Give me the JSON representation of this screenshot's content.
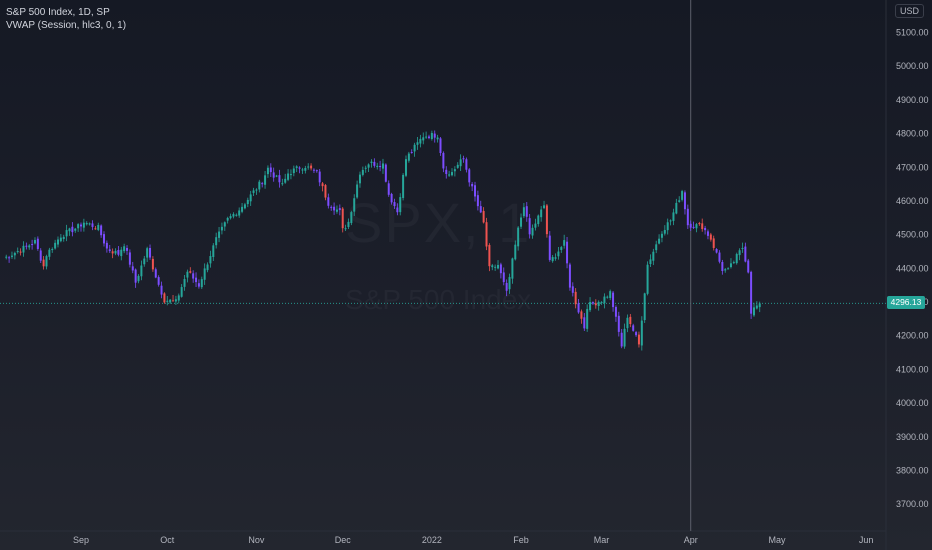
{
  "header": {
    "symbol_line": "S&P 500 Index, 1D, SP",
    "indicator_line": "VWAP (Session, hlc3, 0, 1)",
    "currency": "USD"
  },
  "watermark": {
    "ticker": "SPX, 1",
    "name": "S&P 500 Index"
  },
  "colors": {
    "up": "#26a69a",
    "down": "#7c4dff",
    "down_alt": "#ef5350",
    "last_price_line": "#26a69a",
    "crosshair": "#5d606b"
  },
  "price_tag": {
    "value": "4296.13"
  },
  "chart_data": {
    "type": "candlestick",
    "title": "S&P 500 Index, 1D, SP",
    "ylim": [
      3650,
      5150
    ],
    "y_ticks": [
      "5100.00",
      "5000.00",
      "4900.00",
      "4800.00",
      "4700.00",
      "4600.00",
      "4500.00",
      "4400.00",
      "4300.00",
      "4200.00",
      "4100.00",
      "4000.00",
      "3900.00",
      "3800.00",
      "3700.00"
    ],
    "x_ticks": [
      "Sep",
      "Oct",
      "Nov",
      "Dec",
      "2022",
      "Feb",
      "Mar",
      "Apr",
      "May",
      "Jun"
    ],
    "x_tick_dates": [
      "2021-09-01",
      "2021-10-01",
      "2021-11-01",
      "2021-12-01",
      "2022-01-01",
      "2022-02-01",
      "2022-03-01",
      "2022-04-01",
      "2022-05-01",
      "2022-06-01"
    ],
    "last_price": 4296.13,
    "crosshair_date": "2022-04-01",
    "path": [
      [
        "2021-08-05",
        4429
      ],
      [
        "2021-08-12",
        4460
      ],
      [
        "2021-08-16",
        4479
      ],
      [
        "2021-08-19",
        4406
      ],
      [
        "2021-08-20",
        4441
      ],
      [
        "2021-08-25",
        4497
      ],
      [
        "2021-08-31",
        4523
      ],
      [
        "2021-09-02",
        4537
      ],
      [
        "2021-09-07",
        4520
      ],
      [
        "2021-09-10",
        4458
      ],
      [
        "2021-09-14",
        4443
      ],
      [
        "2021-09-16",
        4473
      ],
      [
        "2021-09-20",
        4358
      ],
      [
        "2021-09-24",
        4455
      ],
      [
        "2021-09-28",
        4352
      ],
      [
        "2021-09-30",
        4307
      ],
      [
        "2021-10-04",
        4300
      ],
      [
        "2021-10-08",
        4391
      ],
      [
        "2021-10-12",
        4350
      ],
      [
        "2021-10-18",
        4486
      ],
      [
        "2021-10-22",
        4545
      ],
      [
        "2021-10-26",
        4575
      ],
      [
        "2021-10-29",
        4605
      ],
      [
        "2021-11-03",
        4660
      ],
      [
        "2021-11-05",
        4697
      ],
      [
        "2021-11-10",
        4646
      ],
      [
        "2021-11-12",
        4682
      ],
      [
        "2021-11-16",
        4700
      ],
      [
        "2021-11-18",
        4704
      ],
      [
        "2021-11-22",
        4682
      ],
      [
        "2021-11-26",
        4594
      ],
      [
        "2021-11-30",
        4567
      ],
      [
        "2021-12-01",
        4513
      ],
      [
        "2021-12-03",
        4538
      ],
      [
        "2021-12-07",
        4686
      ],
      [
        "2021-12-10",
        4712
      ],
      [
        "2021-12-15",
        4709
      ],
      [
        "2021-12-17",
        4620
      ],
      [
        "2021-12-20",
        4568
      ],
      [
        "2021-12-23",
        4725
      ],
      [
        "2021-12-29",
        4793
      ],
      [
        "2022-01-03",
        4796
      ],
      [
        "2022-01-05",
        4700
      ],
      [
        "2022-01-07",
        4677
      ],
      [
        "2022-01-12",
        4726
      ],
      [
        "2022-01-14",
        4662
      ],
      [
        "2022-01-19",
        4533
      ],
      [
        "2022-01-21",
        4398
      ],
      [
        "2022-01-24",
        4410
      ],
      [
        "2022-01-27",
        4326
      ],
      [
        "2022-01-31",
        4515
      ],
      [
        "2022-02-02",
        4589
      ],
      [
        "2022-02-04",
        4500
      ],
      [
        "2022-02-09",
        4587
      ],
      [
        "2022-02-11",
        4418
      ],
      [
        "2022-02-16",
        4475
      ],
      [
        "2022-02-18",
        4349
      ],
      [
        "2022-02-23",
        4225
      ],
      [
        "2022-02-24",
        4288
      ],
      [
        "2022-03-01",
        4306
      ],
      [
        "2022-03-04",
        4328
      ],
      [
        "2022-03-08",
        4170
      ],
      [
        "2022-03-10",
        4259
      ],
      [
        "2022-03-14",
        4173
      ],
      [
        "2022-03-17",
        4411
      ],
      [
        "2022-03-22",
        4511
      ],
      [
        "2022-03-25",
        4543
      ],
      [
        "2022-03-29",
        4631
      ],
      [
        "2022-03-31",
        4530
      ],
      [
        "2022-04-05",
        4525
      ],
      [
        "2022-04-08",
        4488
      ],
      [
        "2022-04-12",
        4397
      ],
      [
        "2022-04-14",
        4393
      ],
      [
        "2022-04-19",
        4462
      ],
      [
        "2022-04-21",
        4393
      ],
      [
        "2022-04-22",
        4272
      ],
      [
        "2022-04-25",
        4296
      ]
    ]
  }
}
